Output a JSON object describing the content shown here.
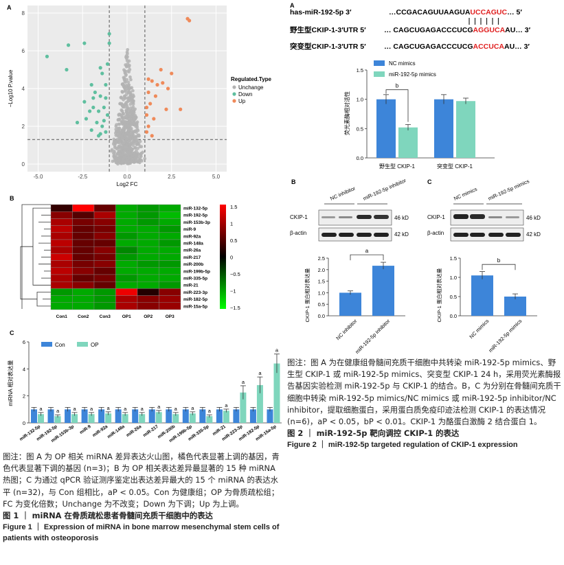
{
  "volcano": {
    "panel_label": "A",
    "xlabel": "Log2 FC",
    "ylabel": "−Log10 P.value",
    "legend_title": "Regulated.Type",
    "legend": [
      {
        "label": "Unchange",
        "color": "#b3b3b3"
      },
      {
        "label": "Down",
        "color": "#5fbf9f"
      },
      {
        "label": "Up",
        "color": "#ef8a5a"
      }
    ]
  },
  "heatmap": {
    "panel_label": "B",
    "columns": [
      "Con1",
      "Con2",
      "Con3",
      "OP1",
      "OP2",
      "OP3"
    ],
    "rows": [
      "miR-132-5p",
      "miR-192-5p",
      "miR-153b-3p",
      "miR-9",
      "miR-92a",
      "miR-148a",
      "miR-26a",
      "miR-217",
      "miR-200b",
      "miR-199b-5p",
      "miR-335-5p",
      "miR-21",
      "miR-223-3p",
      "miR-182-5p",
      "miR-15a-5p"
    ],
    "scale_ticks": [
      "1.5",
      "1",
      "0.5",
      "0",
      "−0.5",
      "−1",
      "−1.5"
    ]
  },
  "bar_c": {
    "panel_label": "C",
    "ylabel": "miRNA 相对表达量",
    "legend": [
      "Con",
      "OP"
    ],
    "colors": {
      "con": "#3d85d9",
      "op": "#7fd6bd"
    },
    "sig": "a"
  },
  "luc": {
    "panel_label": "A",
    "seq1_label": "has-miR-192-5p  3′",
    "seq1_pre": "…CCGACAGUUAAGUA",
    "seq1_red": "UCCAGUC",
    "seq1_post": "…  5′",
    "seq2_label": "野生型CKIP-1-3′UTR  5′",
    "seq2_pre": "… CAGCUGAGACCCUCG",
    "seq2_red": "AGGUCA",
    "seq2_post": "AU…  3′",
    "seq3_label": "突变型CKIP-1-3′UTR  5′",
    "seq3_pre": "… CAGCUGAGACCCUCG",
    "seq3_red": "ACCUCA",
    "seq3_post": "AU…  3′",
    "legend": [
      "NC mimics",
      "miR-192-5p mimics"
    ],
    "ylabel": "荧光素酶相对活性",
    "groups": [
      "野生型 CKIP-1",
      "突变型 CKIP-1"
    ],
    "sig": "b"
  },
  "wb_b": {
    "panel_label": "B",
    "lanes": [
      "NC inhibitor",
      "miR-192-5p inhibitor"
    ],
    "bands": [
      "CKIP-1",
      "β-actin"
    ],
    "kd": [
      "46 kD",
      "42 kD"
    ],
    "ylabel": "CKIP-1 蛋白相对表达量",
    "sig": "a"
  },
  "wb_c": {
    "panel_label": "C",
    "lanes": [
      "NC mimics",
      "miR-192-5p mimics"
    ],
    "bands": [
      "CKIP-1",
      "β-actin"
    ],
    "kd": [
      "46 kD",
      "42 kD"
    ],
    "ylabel": "CKIP-1 蛋白相对表达量",
    "sig": "b"
  },
  "caption_fig2": {
    "note": "图注：图 A 为在健康组骨髓间充质干细胞中共转染 miR-192-5p mimics、野生型 CKIP-1 或 miR-192-5p mimics、突变型 CKIP-1 24 h，采用荧光素酶报告基因实验检测 miR-192-5p 与 CKIP-1 的结合。B，C 为分别在骨髓间充质干细胞中转染 miR-192-5p mimics/NC mimics 或 miR-192-5p inhibitor/NC inhibitor，提取细胞蛋白，采用蛋白质免疫印迹法检测 CKIP-1 的表达情况 (n=6)，aP < 0.05，bP < 0.01。CKIP-1 为酪蛋白激酶 2 结合蛋白 1。",
    "title_cn": "图 2 ｜ miR-192-5p 靶向调控 CKIP-1 的表达",
    "title_en": "Figure 2 ｜ miR-192-5p targeted regulation of CKIP-1 expression"
  },
  "caption_fig1": {
    "note": "图注：图 A 为 OP 相关 miRNA 差异表达火山图，橘色代表显著上调的基因，青色代表显著下调的基因 (n=3)；B 为 OP 相关表达差异最显著的 15 种 miRNA 热图；C 为通过 qPCR 验证测序鉴定出表达差异最大的 15 个 miRNA 的表达水平 (n=32)，与 Con 组相比，aP < 0.05。Con 为健康组；OP 为骨质疏松组；FC 为变化倍数；Unchange 为不改变；Down 为下调；Up 为上调。",
    "title_cn": "图 1 ｜ miRNA 在骨质疏松患者骨髓间充质干细胞中的表达",
    "title_en": "Figure 1 ｜ Expression of miRNA in bone marrow mesenchymal stem cells of patients with osteoporosis"
  },
  "chart_data": [
    {
      "type": "scatter",
      "title": "",
      "xlabel": "Log2 FC",
      "ylabel": "−Log10 P.value",
      "xlim": [
        -5.6,
        5.6
      ],
      "ylim": [
        -0.4,
        8.4
      ],
      "xticks": [
        -5.0,
        -2.5,
        0.0,
        2.5,
        5.0
      ],
      "yticks": [
        0,
        2,
        4,
        6,
        8
      ],
      "thresholds": {
        "x": [
          -1,
          1
        ],
        "y": 1.3
      },
      "series": [
        {
          "name": "Up",
          "points": [
            [
              3.4,
              7.7
            ],
            [
              3.5,
              7.6
            ],
            [
              1.2,
              4.5
            ],
            [
              1.4,
              4.4
            ],
            [
              1.7,
              4.2
            ],
            [
              2.0,
              4.3
            ],
            [
              2.3,
              4.0
            ],
            [
              1.2,
              3.8
            ],
            [
              1.6,
              3.6
            ],
            [
              1.3,
              3.2
            ],
            [
              2.2,
              2.9
            ],
            [
              3.0,
              2.9
            ],
            [
              1.1,
              2.6
            ],
            [
              1.5,
              2.4
            ],
            [
              1.2,
              2.0
            ],
            [
              1.1,
              1.7
            ],
            [
              1.4,
              1.5
            ],
            [
              1.9,
              5.0
            ],
            [
              2.5,
              4.8
            ],
            [
              1.1,
              3.0
            ]
          ]
        },
        {
          "name": "Down",
          "points": [
            [
              -1.0,
              6.9
            ],
            [
              -1.0,
              6.4
            ],
            [
              -2.4,
              6.4
            ],
            [
              -3.3,
              6.3
            ],
            [
              -4.5,
              5.7
            ],
            [
              -3.4,
              5.0
            ],
            [
              -1.1,
              5.3
            ],
            [
              -1.5,
              5.1
            ],
            [
              -2.0,
              4.2
            ],
            [
              -1.8,
              3.8
            ],
            [
              -1.5,
              3.6
            ],
            [
              -1.2,
              3.5
            ],
            [
              -2.4,
              3.3
            ],
            [
              -1.9,
              3.0
            ],
            [
              -1.3,
              3.0
            ],
            [
              -1.6,
              2.8
            ],
            [
              -2.3,
              2.4
            ],
            [
              -1.1,
              2.6
            ],
            [
              -1.7,
              2.2
            ],
            [
              -2.8,
              2.2
            ],
            [
              -1.4,
              2.0
            ],
            [
              -2.0,
              1.8
            ],
            [
              -1.2,
              1.7
            ],
            [
              -1.6,
              1.5
            ],
            [
              -1.9,
              3.5
            ],
            [
              -1.2,
              4.2
            ],
            [
              -1.4,
              4.8
            ],
            [
              -2.1,
              2.8
            ],
            [
              -1.3,
              2.3
            ],
            [
              -1.5,
              1.6
            ]
          ]
        }
      ]
    },
    {
      "type": "heatmap",
      "title": "",
      "columns": [
        "Con1",
        "Con2",
        "Con3",
        "OP1",
        "OP2",
        "OP3"
      ],
      "rows": [
        "miR-132-5p",
        "miR-192-5p",
        "miR-153b-3p",
        "miR-9",
        "miR-92a",
        "miR-148a",
        "miR-26a",
        "miR-217",
        "miR-200b",
        "miR-199b-5p",
        "miR-335-5p",
        "miR-21",
        "miR-223-3p",
        "miR-182-5p",
        "miR-15a-5p"
      ],
      "range": [
        -1.5,
        1.5
      ],
      "values": [
        [
          0.3,
          1.5,
          0.6,
          -1.0,
          -0.9,
          -1.0
        ],
        [
          0.8,
          0.5,
          1.0,
          -1.0,
          -0.9,
          -1.1
        ],
        [
          1.0,
          0.7,
          0.8,
          -1.0,
          -0.9,
          -1.0
        ],
        [
          1.1,
          0.6,
          0.7,
          -1.0,
          -1.0,
          -0.9
        ],
        [
          1.0,
          0.6,
          0.8,
          -0.9,
          -1.0,
          -1.0
        ],
        [
          1.1,
          0.6,
          0.6,
          -1.0,
          -1.0,
          -0.9
        ],
        [
          1.0,
          0.6,
          0.8,
          -0.8,
          -1.0,
          -1.0
        ],
        [
          1.2,
          0.6,
          0.7,
          -0.9,
          -1.0,
          -1.0
        ],
        [
          1.0,
          0.7,
          0.8,
          -1.0,
          -0.9,
          -0.9
        ],
        [
          1.1,
          0.8,
          0.6,
          -1.0,
          -1.0,
          -1.0
        ],
        [
          1.0,
          0.6,
          0.7,
          -0.9,
          -1.0,
          -1.0
        ],
        [
          1.0,
          0.8,
          0.6,
          -1.0,
          -1.0,
          -0.9
        ],
        [
          -0.9,
          -1.0,
          -0.9,
          1.4,
          0.2,
          0.8
        ],
        [
          -1.0,
          -1.0,
          -0.9,
          1.0,
          0.8,
          0.9
        ],
        [
          -1.0,
          -1.0,
          -0.9,
          1.0,
          0.8,
          0.9
        ]
      ]
    },
    {
      "type": "bar",
      "title": "",
      "ylabel": "miRNA 相对表达量",
      "ylim": [
        0,
        6
      ],
      "yticks": [
        0,
        2,
        4,
        6
      ],
      "categories": [
        "miR-132-5p",
        "miR-192-5p",
        "miR-153b-3p",
        "miR-9",
        "miR-92a",
        "miR-148a",
        "miR-26a",
        "miR-217",
        "miR-200b",
        "miR-199b-5p",
        "miR-335-5p",
        "miR-21",
        "miR-223-3p",
        "miR-182-5p",
        "miR-15a-5p"
      ],
      "series": [
        {
          "name": "Con",
          "values": [
            1.0,
            1.0,
            1.0,
            1.0,
            1.0,
            1.0,
            1.0,
            1.0,
            1.0,
            1.0,
            1.0,
            1.0,
            1.0,
            1.0,
            1.0
          ],
          "errors": [
            0.15,
            0.15,
            0.15,
            0.15,
            0.15,
            0.15,
            0.15,
            0.15,
            0.15,
            0.15,
            0.15,
            0.15,
            0.15,
            0.15,
            0.15
          ]
        },
        {
          "name": "OP",
          "values": [
            0.65,
            0.5,
            0.65,
            0.65,
            0.7,
            0.65,
            0.65,
            0.8,
            0.65,
            0.7,
            0.5,
            0.9,
            2.25,
            2.8,
            4.4
          ],
          "errors": [
            0.12,
            0.1,
            0.12,
            0.12,
            0.12,
            0.12,
            0.12,
            0.12,
            0.12,
            0.12,
            0.1,
            0.12,
            0.5,
            0.6,
            0.7
          ]
        }
      ]
    },
    {
      "type": "bar",
      "title": "",
      "ylabel": "荧光素酶相对活性",
      "ylim": [
        0,
        1.5
      ],
      "yticks": [
        0,
        0.5,
        1.0,
        1.5
      ],
      "categories": [
        "野生型 CKIP-1",
        "突变型 CKIP-1"
      ],
      "series": [
        {
          "name": "NC mimics",
          "values": [
            1.0,
            1.0
          ],
          "errors": [
            0.08,
            0.08
          ]
        },
        {
          "name": "miR-192-5p mimics",
          "values": [
            0.52,
            0.97
          ],
          "errors": [
            0.05,
            0.05
          ]
        }
      ]
    },
    {
      "type": "bar",
      "title": "",
      "ylabel": "CKIP-1 蛋白相对表达量",
      "ylim": [
        0,
        2.5
      ],
      "yticks": [
        0,
        0.5,
        1.0,
        1.5,
        2.0,
        2.5
      ],
      "categories": [
        "NC inhibitor",
        "miR-192-5p inhibitor"
      ],
      "series": [
        {
          "name": "",
          "values": [
            1.0,
            2.17
          ],
          "errors": [
            0.08,
            0.15
          ]
        }
      ]
    },
    {
      "type": "bar",
      "title": "",
      "ylabel": "CKIP-1 蛋白相对表达量",
      "ylim": [
        0,
        1.5
      ],
      "yticks": [
        0,
        0.5,
        1.0,
        1.5
      ],
      "categories": [
        "NC mimics",
        "miR-192-5p mimics"
      ],
      "series": [
        {
          "name": "",
          "values": [
            1.05,
            0.5
          ],
          "errors": [
            0.1,
            0.07
          ]
        }
      ]
    }
  ]
}
